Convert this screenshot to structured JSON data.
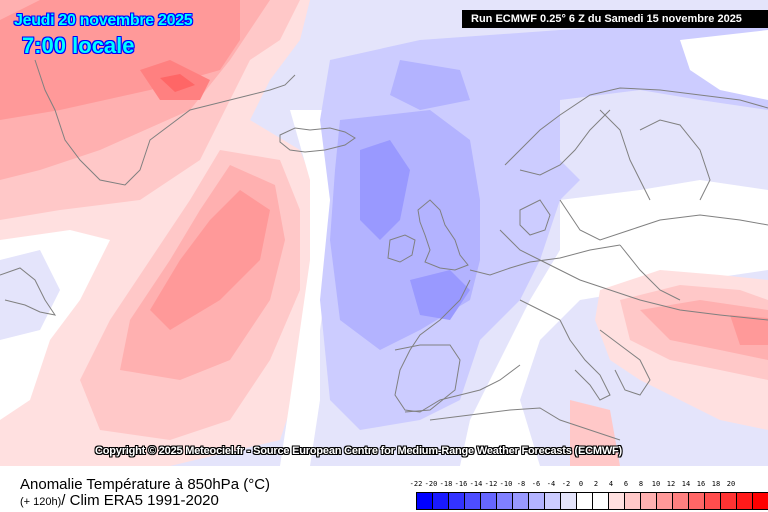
{
  "header": {
    "valid_date": "Jeudi 20 novembre 2025",
    "valid_time": "7:00 locale",
    "run_info": "Run ECMWF 0.25° 6 Z du Samedi 15 novembre 2025"
  },
  "map": {
    "region": "North Atlantic / Europe",
    "copyright": "Copyright © 2025 Meteociel.fr - Source European Centre for Medium-Range Weather Forecasts (ECMWF)"
  },
  "legend": {
    "title_line1": "Anomalie Température à 850hPa (°C)",
    "title_line2_lead": "(+ 120h)",
    "title_line2_rest": "/ Clim ERA5 1991-2020",
    "colorbar_labels": [
      "-22",
      "-20",
      "-18",
      "-16",
      "-14",
      "-12",
      "-10",
      "-8",
      "-6",
      "-4",
      "-2",
      "0",
      "2",
      "4",
      "6",
      "8",
      "10",
      "12",
      "14",
      "16",
      "18",
      "20"
    ],
    "colorbar_colors": [
      "#0000ff",
      "#1a1aff",
      "#3333ff",
      "#4d4dff",
      "#6666ff",
      "#8080ff",
      "#9999ff",
      "#b3b3ff",
      "#ccccff",
      "#e4e4fb",
      "#ffffff",
      "#ffffff",
      "#ffe0e0",
      "#ffc8c8",
      "#ffb0b0",
      "#ff9999",
      "#ff8080",
      "#ff6666",
      "#ff4d4d",
      "#ff3333",
      "#ff1a1a",
      "#ff0000"
    ]
  },
  "colors": {
    "title_fill": "#00ffff",
    "title_outline": "#0000ff",
    "coastline": "#808080",
    "run_box_bg": "#000000"
  }
}
